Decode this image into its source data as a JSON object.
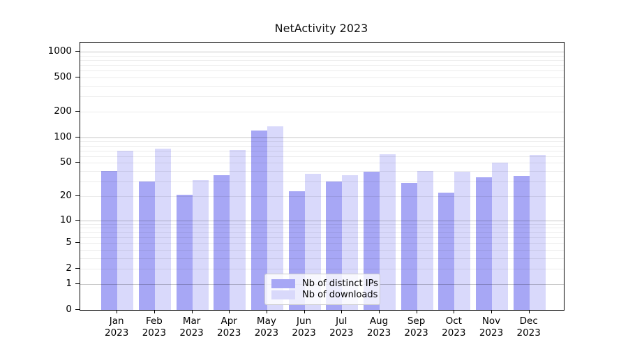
{
  "chart_data": {
    "type": "bar",
    "title": "NetActivity 2023",
    "categories": [
      "Jan",
      "Feb",
      "Mar",
      "Apr",
      "May",
      "Jun",
      "Jul",
      "Aug",
      "Sep",
      "Oct",
      "Nov",
      "Dec"
    ],
    "category_year": "2023",
    "series": [
      {
        "name": "Nb of distinct IPs",
        "color": "#a7a7f5",
        "values": [
          40,
          30,
          21,
          36,
          120,
          23,
          30,
          39,
          29,
          22,
          34,
          35
        ]
      },
      {
        "name": "Nb of downloads",
        "color": "#d9d9fb",
        "values": [
          70,
          74,
          31,
          71,
          135,
          37,
          36,
          63,
          40,
          39,
          50,
          62
        ]
      }
    ],
    "xlabel": "",
    "ylabel": "",
    "yscale": "log1p",
    "y_ticks": [
      0,
      1,
      2,
      5,
      10,
      20,
      50,
      100,
      200,
      500,
      1000
    ],
    "ylim": [
      0,
      1280
    ],
    "grid": "both",
    "legend_position": "lower center"
  }
}
